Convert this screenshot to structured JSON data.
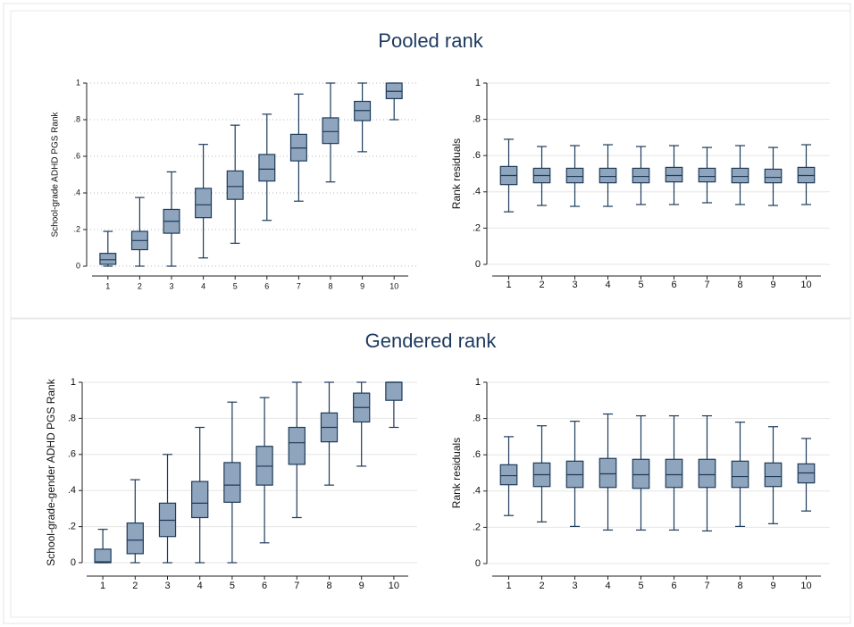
{
  "panel_titles": [
    "Pooled rank",
    "Gendered rank"
  ],
  "chart_data": [
    {
      "type": "box",
      "ylabel": "School-grade ADHD PGS Rank",
      "grid_style": "dotted",
      "color": "#8fa5bd",
      "edge_color": "#1d3b5a",
      "categories": [
        "1",
        "2",
        "3",
        "4",
        "5",
        "6",
        "7",
        "8",
        "9",
        "10"
      ],
      "low": [
        0,
        0,
        0,
        0.045,
        0.125,
        0.25,
        0.355,
        0.46,
        0.625,
        0.8
      ],
      "q1": [
        0.01,
        0.09,
        0.18,
        0.265,
        0.365,
        0.465,
        0.575,
        0.67,
        0.795,
        0.915
      ],
      "median": [
        0.035,
        0.14,
        0.245,
        0.335,
        0.435,
        0.53,
        0.645,
        0.735,
        0.85,
        0.955
      ],
      "q3": [
        0.07,
        0.19,
        0.31,
        0.425,
        0.52,
        0.61,
        0.72,
        0.81,
        0.9,
        1
      ],
      "high": [
        0.19,
        0.375,
        0.515,
        0.665,
        0.77,
        0.83,
        0.94,
        1,
        1,
        1
      ],
      "ylim": [
        0,
        1
      ],
      "yticks": [
        0,
        {
          "value": 0.2,
          "label": ".2"
        },
        {
          "value": 0.4,
          "label": ".4"
        },
        {
          "value": 0.6,
          "label": ".6"
        },
        {
          "value": 0.8,
          "label": ".8"
        },
        1
      ]
    },
    {
      "type": "box",
      "ylabel": "Rank residuals",
      "grid_style": "solid",
      "color": "#8fa5bd",
      "edge_color": "#1d3b5a",
      "categories": [
        "1",
        "2",
        "3",
        "4",
        "5",
        "6",
        "7",
        "8",
        "9",
        "10"
      ],
      "low": [
        0.29,
        0.325,
        0.32,
        0.32,
        0.33,
        0.33,
        0.34,
        0.33,
        0.325,
        0.33
      ],
      "q1": [
        0.44,
        0.45,
        0.45,
        0.45,
        0.45,
        0.455,
        0.455,
        0.45,
        0.45,
        0.45
      ],
      "median": [
        0.49,
        0.49,
        0.485,
        0.485,
        0.485,
        0.49,
        0.485,
        0.485,
        0.48,
        0.49
      ],
      "q3": [
        0.54,
        0.53,
        0.53,
        0.53,
        0.53,
        0.535,
        0.53,
        0.53,
        0.525,
        0.535
      ],
      "high": [
        0.69,
        0.65,
        0.655,
        0.66,
        0.65,
        0.655,
        0.645,
        0.655,
        0.645,
        0.66
      ],
      "ylim": [
        0,
        1
      ],
      "yticks": [
        0,
        {
          "value": 0.2,
          "label": ".2"
        },
        {
          "value": 0.4,
          "label": ".4"
        },
        {
          "value": 0.6,
          "label": ".6"
        },
        {
          "value": 0.8,
          "label": ".8"
        },
        1
      ]
    },
    {
      "type": "box",
      "ylabel": "School-grade-gender ADHD PGS Rank",
      "grid_style": "solid",
      "color": "#8fa5bd",
      "edge_color": "#1d3b5a",
      "categories": [
        "1",
        "2",
        "3",
        "4",
        "5",
        "6",
        "7",
        "8",
        "9",
        "10"
      ],
      "low": [
        0,
        0,
        0,
        0,
        0,
        0.11,
        0.25,
        0.43,
        0.535,
        0.75
      ],
      "q1": [
        0,
        0.05,
        0.145,
        0.25,
        0.335,
        0.43,
        0.545,
        0.67,
        0.78,
        0.9
      ],
      "median": [
        0.005,
        0.125,
        0.235,
        0.33,
        0.43,
        0.535,
        0.665,
        0.75,
        0.86,
        1
      ],
      "q3": [
        0.075,
        0.22,
        0.33,
        0.45,
        0.555,
        0.645,
        0.75,
        0.83,
        0.94,
        1
      ],
      "high": [
        0.185,
        0.46,
        0.6,
        0.75,
        0.89,
        0.915,
        1,
        1,
        1,
        1
      ],
      "ylim": [
        0,
        1
      ],
      "yticks": [
        0,
        {
          "value": 0.2,
          "label": ".2"
        },
        {
          "value": 0.4,
          "label": ".4"
        },
        {
          "value": 0.6,
          "label": ".6"
        },
        {
          "value": 0.8,
          "label": ".8"
        },
        1
      ]
    },
    {
      "type": "box",
      "ylabel": "Rank residuals",
      "grid_style": "solid",
      "color": "#8fa5bd",
      "edge_color": "#1d3b5a",
      "categories": [
        "1",
        "2",
        "3",
        "4",
        "5",
        "6",
        "7",
        "8",
        "9",
        "10"
      ],
      "low": [
        0.265,
        0.23,
        0.205,
        0.185,
        0.185,
        0.185,
        0.18,
        0.205,
        0.22,
        0.29
      ],
      "q1": [
        0.435,
        0.425,
        0.42,
        0.42,
        0.415,
        0.42,
        0.42,
        0.42,
        0.425,
        0.445
      ],
      "median": [
        0.485,
        0.49,
        0.49,
        0.495,
        0.49,
        0.49,
        0.49,
        0.48,
        0.48,
        0.5
      ],
      "q3": [
        0.545,
        0.555,
        0.565,
        0.58,
        0.575,
        0.575,
        0.575,
        0.565,
        0.555,
        0.55
      ],
      "high": [
        0.7,
        0.76,
        0.785,
        0.825,
        0.815,
        0.815,
        0.815,
        0.78,
        0.755,
        0.69
      ],
      "ylim": [
        0,
        1
      ],
      "yticks": [
        0,
        {
          "value": 0.2,
          "label": ".2"
        },
        {
          "value": 0.4,
          "label": ".4"
        },
        {
          "value": 0.6,
          "label": ".6"
        },
        {
          "value": 0.8,
          "label": ".8"
        },
        1
      ]
    }
  ]
}
